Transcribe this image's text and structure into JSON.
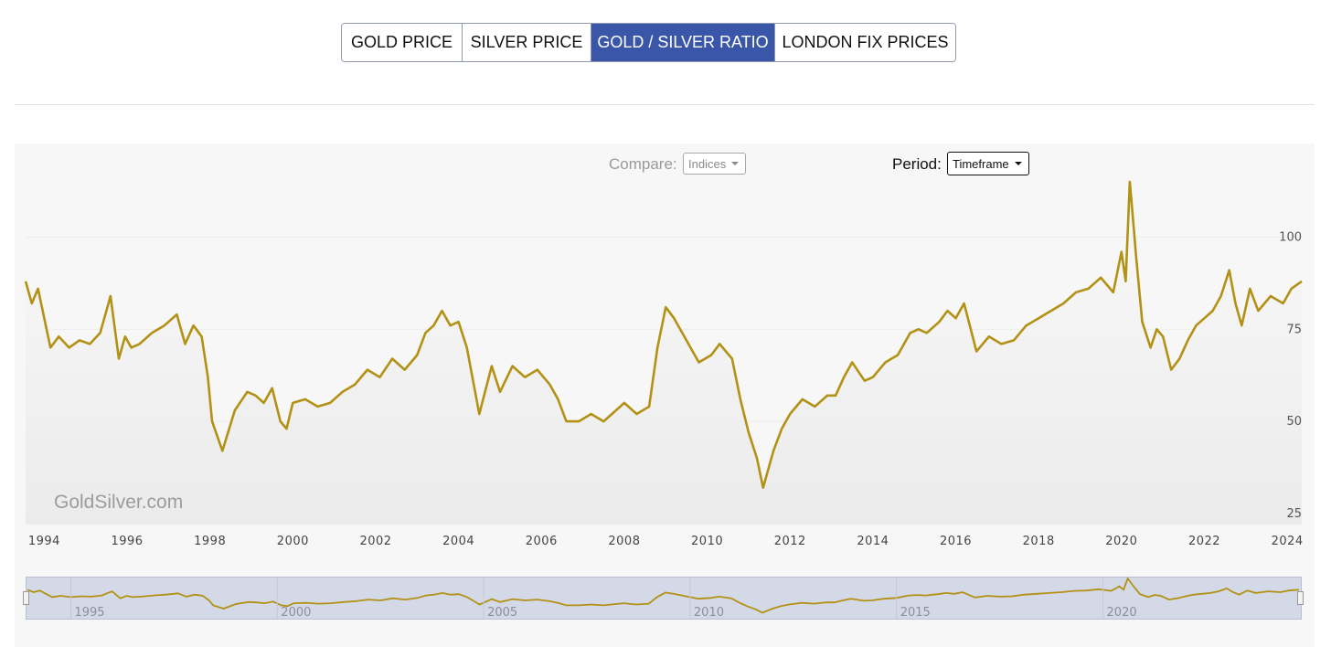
{
  "tabs": [
    {
      "label": "GOLD PRICE",
      "active": false
    },
    {
      "label": "SILVER PRICE",
      "active": false
    },
    {
      "label": "GOLD / SILVER RATIO",
      "active": true
    },
    {
      "label": "LONDON FIX PRICES",
      "active": false
    }
  ],
  "controls": {
    "compare_label": "Compare:",
    "compare_value": "Indices",
    "period_label": "Period:",
    "period_value": "Timeframe"
  },
  "watermark": "GoldSilver.com",
  "colors": {
    "line": "#b39115",
    "active_tab": "#3a56a8",
    "navigator_bg": "#d4d9e8"
  },
  "chart_data": {
    "type": "line",
    "title": "Gold / Silver Ratio",
    "xlabel": "",
    "ylabel": "",
    "y_ticks": [
      25,
      50,
      75,
      100
    ],
    "ylim": [
      22,
      113
    ],
    "xlim": [
      1993.55,
      2024.35
    ],
    "x_ticks": [
      1994,
      1996,
      1998,
      2000,
      2002,
      2004,
      2006,
      2008,
      2010,
      2012,
      2014,
      2016,
      2018,
      2020,
      2022,
      2024
    ],
    "navigator_ticks": [
      1995,
      2000,
      2005,
      2010,
      2015,
      2020
    ],
    "series": [
      {
        "name": "Gold/Silver Ratio",
        "x": [
          1993.55,
          1993.7,
          1993.85,
          1994.0,
          1994.15,
          1994.35,
          1994.6,
          1994.85,
          1995.1,
          1995.35,
          1995.6,
          1995.8,
          1995.95,
          1996.1,
          1996.3,
          1996.6,
          1996.9,
          1997.2,
          1997.4,
          1997.6,
          1997.8,
          1997.95,
          1998.05,
          1998.3,
          1998.6,
          1998.9,
          1999.1,
          1999.3,
          1999.5,
          1999.7,
          1999.85,
          2000.0,
          2000.3,
          2000.6,
          2000.9,
          2001.2,
          2001.5,
          2001.8,
          2002.1,
          2002.4,
          2002.7,
          2003.0,
          2003.2,
          2003.4,
          2003.6,
          2003.8,
          2004.0,
          2004.2,
          2004.5,
          2004.8,
          2005.0,
          2005.3,
          2005.6,
          2005.9,
          2006.2,
          2006.4,
          2006.6,
          2006.9,
          2007.2,
          2007.5,
          2007.8,
          2008.0,
          2008.3,
          2008.6,
          2008.8,
          2009.0,
          2009.2,
          2009.5,
          2009.8,
          2010.1,
          2010.3,
          2010.6,
          2010.8,
          2011.0,
          2011.2,
          2011.35,
          2011.6,
          2011.8,
          2012.0,
          2012.3,
          2012.6,
          2012.9,
          2013.1,
          2013.3,
          2013.5,
          2013.8,
          2014.0,
          2014.3,
          2014.6,
          2014.9,
          2015.1,
          2015.3,
          2015.6,
          2015.8,
          2016.0,
          2016.2,
          2016.5,
          2016.8,
          2017.1,
          2017.4,
          2017.7,
          2018.0,
          2018.3,
          2018.6,
          2018.9,
          2019.2,
          2019.5,
          2019.8,
          2020.0,
          2020.1,
          2020.2,
          2020.3,
          2020.35,
          2020.5,
          2020.7,
          2020.85,
          2021.0,
          2021.2,
          2021.4,
          2021.6,
          2021.8,
          2022.0,
          2022.2,
          2022.4,
          2022.6,
          2022.75,
          2022.9,
          2023.1,
          2023.3,
          2023.6,
          2023.9,
          2024.1,
          2024.35
        ],
        "values": [
          88,
          82,
          86,
          78,
          70,
          73,
          70,
          72,
          71,
          74,
          84,
          67,
          73,
          70,
          71,
          74,
          76,
          79,
          71,
          76,
          73,
          62,
          50,
          42,
          53,
          58,
          57,
          55,
          59,
          50,
          48,
          55,
          56,
          54,
          55,
          58,
          60,
          64,
          62,
          67,
          64,
          68,
          74,
          76,
          80,
          76,
          77,
          70,
          52,
          65,
          58,
          65,
          62,
          64,
          60,
          56,
          50,
          50,
          52,
          50,
          53,
          55,
          52,
          54,
          70,
          81,
          78,
          72,
          66,
          68,
          71,
          67,
          56,
          47,
          40,
          32,
          42,
          48,
          52,
          56,
          54,
          57,
          57,
          62,
          66,
          61,
          62,
          66,
          68,
          74,
          75,
          74,
          77,
          80,
          78,
          82,
          69,
          73,
          71,
          72,
          76,
          78,
          80,
          82,
          85,
          86,
          89,
          85,
          96,
          88,
          115,
          102,
          95,
          77,
          70,
          75,
          73,
          64,
          67,
          72,
          76,
          78,
          80,
          84,
          91,
          82,
          76,
          86,
          80,
          84,
          82,
          86,
          88
        ]
      }
    ]
  }
}
